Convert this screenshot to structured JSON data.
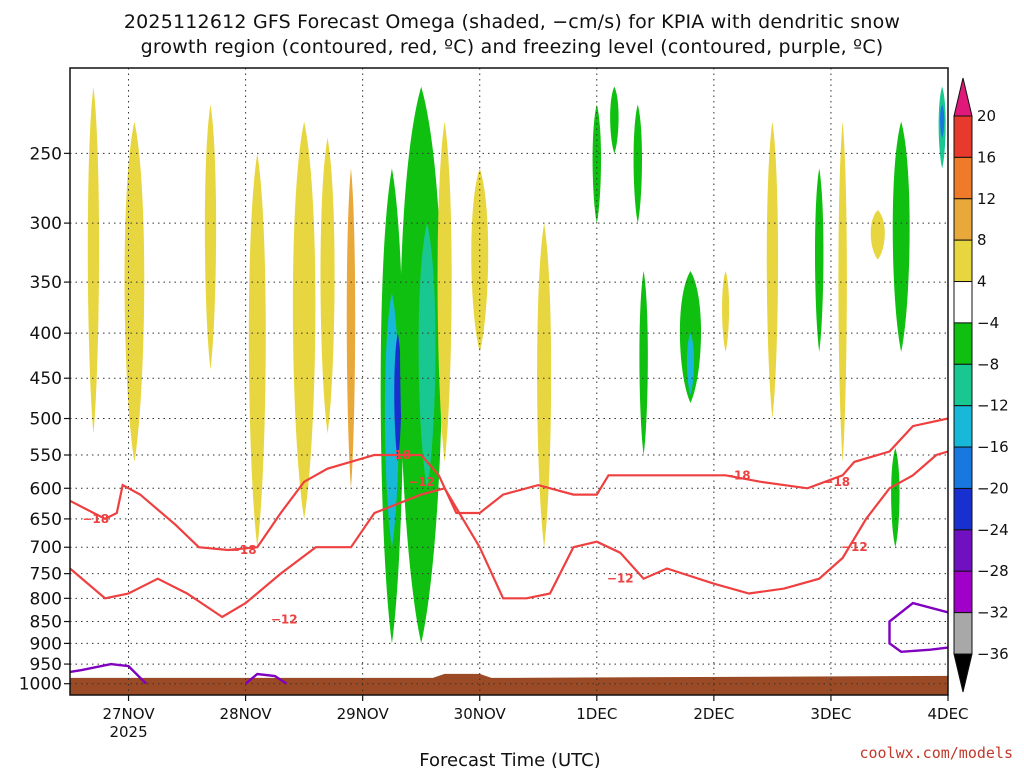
{
  "chart_data": {
    "type": "heatmap",
    "title_lines": [
      "2025112612 GFS Forecast Omega (shaded, −cm/s) for KPIA with dendritic snow",
      "growth region (contoured, red, ºC) and freezing level (contoured, purple, ºC)"
    ],
    "xlabel": "Forecast Time (UTC)",
    "x_ticks": [
      {
        "label": "27NOV",
        "sub": "2025",
        "day": 0.5
      },
      {
        "label": "28NOV",
        "sub": "",
        "day": 1.5
      },
      {
        "label": "29NOV",
        "sub": "",
        "day": 2.5
      },
      {
        "label": "30NOV",
        "sub": "",
        "day": 3.5
      },
      {
        "label": "1DEC",
        "sub": "",
        "day": 4.5
      },
      {
        "label": "2DEC",
        "sub": "",
        "day": 5.5
      },
      {
        "label": "3DEC",
        "sub": "",
        "day": 6.5
      },
      {
        "label": "4DEC",
        "sub": "",
        "day": 7.5
      }
    ],
    "x_range_days": [
      0,
      7.5
    ],
    "y_ticks": [
      250,
      300,
      350,
      400,
      450,
      500,
      550,
      600,
      650,
      700,
      750,
      800,
      850,
      900,
      950,
      1000
    ],
    "y_range": [
      200,
      1030
    ],
    "y_scale": "log-pressure",
    "grid": true,
    "colorbar": {
      "labels": [
        "20",
        "16",
        "12",
        "8",
        "4",
        "−4",
        "−8",
        "−12",
        "−16",
        "−20",
        "−24",
        "−28",
        "−32",
        "−36"
      ],
      "colors": [
        "#e0187a",
        "#e83a2c",
        "#ee7a2a",
        "#e8a83a",
        "#e8d640",
        "#ffffff",
        "#10c010",
        "#18c890",
        "#18b8d8",
        "#1878e0",
        "#1830d0",
        "#7010c0",
        "#a000c8",
        "#a8a8a8",
        "#000000"
      ]
    },
    "omega_regions": [
      {
        "t": 0.2,
        "p0": 210,
        "p1": 520,
        "w": 0.08,
        "c": 4
      },
      {
        "t": 0.55,
        "p0": 230,
        "p1": 560,
        "w": 0.14,
        "c": 4
      },
      {
        "t": 1.2,
        "p0": 220,
        "p1": 440,
        "w": 0.08,
        "c": 4
      },
      {
        "t": 1.6,
        "p0": 250,
        "p1": 700,
        "w": 0.12,
        "c": 4
      },
      {
        "t": 2.0,
        "p0": 230,
        "p1": 650,
        "w": 0.16,
        "c": 4
      },
      {
        "t": 2.2,
        "p0": 240,
        "p1": 520,
        "w": 0.1,
        "c": 4
      },
      {
        "t": 2.4,
        "p0": 260,
        "p1": 600,
        "w": 0.06,
        "c": 3
      },
      {
        "t": 2.75,
        "p0": 260,
        "p1": 900,
        "w": 0.16,
        "c": 6
      },
      {
        "t": 2.75,
        "p0": 360,
        "p1": 700,
        "w": 0.1,
        "c": 8
      },
      {
        "t": 2.8,
        "p0": 400,
        "p1": 560,
        "w": 0.05,
        "c": 10
      },
      {
        "t": 3.0,
        "p0": 210,
        "p1": 900,
        "w": 0.3,
        "c": 6
      },
      {
        "t": 3.05,
        "p0": 300,
        "p1": 600,
        "w": 0.12,
        "c": 7
      },
      {
        "t": 3.2,
        "p0": 230,
        "p1": 560,
        "w": 0.1,
        "c": 4
      },
      {
        "t": 3.5,
        "p0": 260,
        "p1": 420,
        "w": 0.12,
        "c": 4
      },
      {
        "t": 4.05,
        "p0": 300,
        "p1": 700,
        "w": 0.1,
        "c": 4
      },
      {
        "t": 4.5,
        "p0": 220,
        "p1": 300,
        "w": 0.06,
        "c": 6
      },
      {
        "t": 4.65,
        "p0": 210,
        "p1": 250,
        "w": 0.06,
        "c": 6
      },
      {
        "t": 4.85,
        "p0": 220,
        "p1": 300,
        "w": 0.06,
        "c": 6
      },
      {
        "t": 4.9,
        "p0": 340,
        "p1": 550,
        "w": 0.06,
        "c": 6
      },
      {
        "t": 5.3,
        "p0": 340,
        "p1": 480,
        "w": 0.15,
        "c": 6
      },
      {
        "t": 5.3,
        "p0": 400,
        "p1": 470,
        "w": 0.05,
        "c": 8
      },
      {
        "t": 5.6,
        "p0": 340,
        "p1": 420,
        "w": 0.05,
        "c": 4
      },
      {
        "t": 6.0,
        "p0": 230,
        "p1": 500,
        "w": 0.08,
        "c": 4
      },
      {
        "t": 6.4,
        "p0": 260,
        "p1": 420,
        "w": 0.06,
        "c": 6
      },
      {
        "t": 6.6,
        "p0": 230,
        "p1": 560,
        "w": 0.06,
        "c": 4
      },
      {
        "t": 6.9,
        "p0": 290,
        "p1": 330,
        "w": 0.1,
        "c": 4
      },
      {
        "t": 7.1,
        "p0": 230,
        "p1": 420,
        "w": 0.12,
        "c": 6
      },
      {
        "t": 7.05,
        "p0": 540,
        "p1": 700,
        "w": 0.06,
        "c": 6
      },
      {
        "t": 7.45,
        "p0": 210,
        "p1": 260,
        "w": 0.05,
        "c": 7
      },
      {
        "t": 7.45,
        "p0": 220,
        "p1": 240,
        "w": 0.03,
        "c": 9
      }
    ],
    "contours": [
      {
        "level": -18,
        "label": "−18",
        "color": "#ee4040",
        "points": [
          [
            0,
            620
          ],
          [
            0.3,
            650
          ],
          [
            0.4,
            640
          ],
          [
            0.45,
            595
          ],
          [
            0.6,
            610
          ],
          [
            0.9,
            660
          ],
          [
            1.1,
            700
          ],
          [
            1.35,
            705
          ],
          [
            1.6,
            700
          ],
          [
            1.8,
            640
          ],
          [
            2.0,
            590
          ],
          [
            2.2,
            570
          ],
          [
            2.6,
            550
          ],
          [
            3.0,
            550
          ],
          [
            3.15,
            580
          ],
          [
            3.3,
            640
          ],
          [
            3.5,
            640
          ],
          [
            3.7,
            610
          ],
          [
            4.0,
            595
          ],
          [
            4.3,
            610
          ],
          [
            4.5,
            610
          ],
          [
            4.6,
            580
          ],
          [
            4.8,
            580
          ],
          [
            5.0,
            580
          ],
          [
            5.3,
            580
          ],
          [
            5.6,
            580
          ],
          [
            5.9,
            590
          ],
          [
            6.3,
            600
          ],
          [
            6.6,
            580
          ],
          [
            6.7,
            560
          ],
          [
            7.0,
            545
          ],
          [
            7.2,
            510
          ],
          [
            7.5,
            500
          ]
        ]
      },
      {
        "level": -12,
        "label": "−12",
        "color": "#ee4040",
        "points": [
          [
            0,
            740
          ],
          [
            0.3,
            800
          ],
          [
            0.5,
            790
          ],
          [
            0.75,
            760
          ],
          [
            1.0,
            790
          ],
          [
            1.3,
            840
          ],
          [
            1.5,
            810
          ],
          [
            1.8,
            750
          ],
          [
            2.1,
            700
          ],
          [
            2.4,
            700
          ],
          [
            2.6,
            640
          ],
          [
            3.0,
            610
          ],
          [
            3.2,
            600
          ],
          [
            3.5,
            700
          ],
          [
            3.7,
            800
          ],
          [
            3.9,
            800
          ],
          [
            4.1,
            790
          ],
          [
            4.3,
            700
          ],
          [
            4.5,
            690
          ],
          [
            4.7,
            710
          ],
          [
            4.9,
            760
          ],
          [
            5.1,
            740
          ],
          [
            5.5,
            770
          ],
          [
            5.8,
            790
          ],
          [
            6.1,
            780
          ],
          [
            6.4,
            760
          ],
          [
            6.6,
            720
          ],
          [
            6.8,
            650
          ],
          [
            7.0,
            600
          ],
          [
            7.2,
            580
          ],
          [
            7.4,
            550
          ],
          [
            7.5,
            545
          ]
        ]
      }
    ],
    "freezing_contours": [
      {
        "level": 0,
        "color": "#8000c0",
        "points": [
          [
            0,
            970
          ],
          [
            0.1,
            965
          ],
          [
            0.35,
            950
          ],
          [
            0.5,
            955
          ],
          [
            0.65,
            1000
          ]
        ]
      },
      {
        "level": 0,
        "color": "#8000c0",
        "points": [
          [
            1.5,
            1000
          ],
          [
            1.6,
            975
          ],
          [
            1.75,
            980
          ],
          [
            1.85,
            1000
          ]
        ]
      },
      {
        "level": 0,
        "color": "#8000c0",
        "points": [
          [
            7.5,
            830
          ],
          [
            7.2,
            810
          ],
          [
            7.0,
            850
          ],
          [
            7.0,
            900
          ],
          [
            7.1,
            920
          ],
          [
            7.35,
            915
          ],
          [
            7.5,
            910
          ]
        ]
      }
    ]
  },
  "credit": "coolwx.com/models"
}
